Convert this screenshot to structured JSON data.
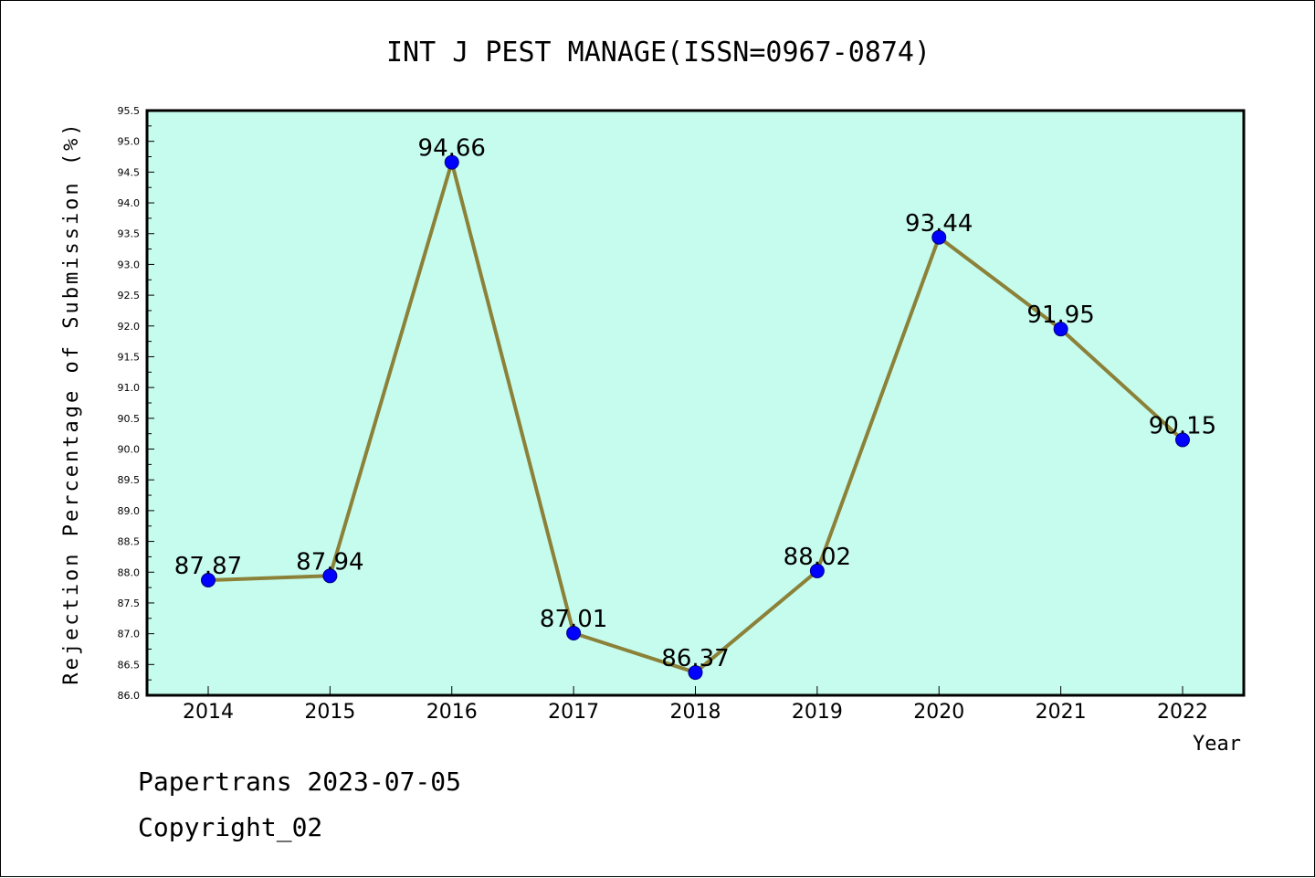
{
  "chart_data": {
    "type": "line",
    "title": "INT J PEST MANAGE(ISSN=0967-0874)",
    "xlabel": "Year",
    "ylabel": "Rejection Percentage of Submission (%)",
    "categories": [
      "2014",
      "2015",
      "2016",
      "2017",
      "2018",
      "2019",
      "2020",
      "2021",
      "2022"
    ],
    "values": [
      87.87,
      87.94,
      94.66,
      87.01,
      86.37,
      88.02,
      93.44,
      91.95,
      90.15
    ],
    "value_labels": [
      "87.87",
      "87.94",
      "94.66",
      "87.01",
      "86.37",
      "88.02",
      "93.44",
      "91.95",
      "90.15"
    ],
    "ylim": [
      86.0,
      95.5
    ],
    "ytick_step": 0.5,
    "yticks": [
      "86.0",
      "86.5",
      "87.0",
      "87.5",
      "88.0",
      "88.5",
      "89.0",
      "89.5",
      "90.0",
      "90.5",
      "91.0",
      "91.5",
      "92.0",
      "92.5",
      "93.0",
      "93.5",
      "94.0",
      "94.5",
      "95.0",
      "95.5"
    ],
    "grid": false,
    "colors": {
      "plot_background": "#c6fcee",
      "line": "#8b8138",
      "marker_fill": "#0000ff",
      "marker_edge": "#000080"
    }
  },
  "footer": {
    "line1": "Papertrans 2023-07-05",
    "line2": "Copyright_02"
  }
}
